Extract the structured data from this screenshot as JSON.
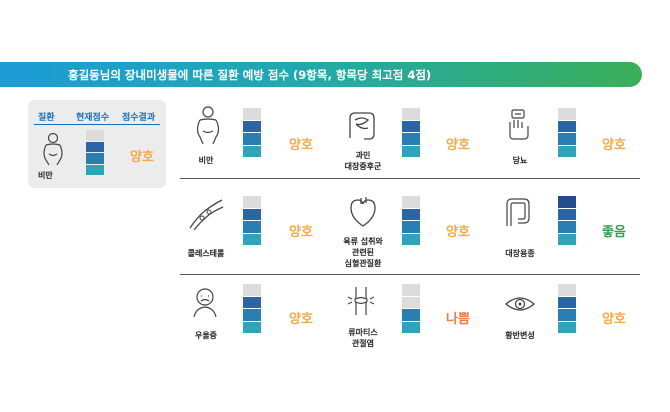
{
  "header": {
    "title": "홍길동님의 장내미생물에 따른 질환 예방 점수 (9항목, 항목당 최고점 4점)"
  },
  "legend": {
    "col_disease": "질환",
    "col_score": "현재점수",
    "col_result": "점수결과",
    "example_label": "비만",
    "example_grade": "양호",
    "example_score": 3
  },
  "diseases": [
    {
      "label_lines": [
        "비만"
      ],
      "grade": "양호",
      "score": 3,
      "icon": "obesity-icon"
    },
    {
      "label_lines": [
        "과민",
        "대장증후군"
      ],
      "grade": "양호",
      "score": 3,
      "icon": "intestine-icon"
    },
    {
      "label_lines": [
        "당뇨"
      ],
      "grade": "양호",
      "score": 3,
      "icon": "glucose-meter-icon"
    },
    {
      "label_lines": [
        "콜레스테롤"
      ],
      "grade": "양호",
      "score": 3,
      "icon": "blood-vessel-icon"
    },
    {
      "label_lines": [
        "육류 섭취와",
        "관련된",
        "심혈관질환"
      ],
      "grade": "양호",
      "score": 3,
      "icon": "heart-icon"
    },
    {
      "label_lines": [
        "대장용종"
      ],
      "grade": "좋음",
      "score": 4,
      "icon": "colon-icon"
    },
    {
      "label_lines": [
        "우울증"
      ],
      "grade": "양호",
      "score": 3,
      "icon": "depressed-face-icon"
    },
    {
      "label_lines": [
        "류마티스",
        "관절염"
      ],
      "grade": "나쁨",
      "score": 2,
      "icon": "joint-icon"
    },
    {
      "label_lines": [
        "황반변성"
      ],
      "grade": "양호",
      "score": 3,
      "icon": "eye-icon"
    }
  ],
  "colors": {
    "bar_empty": "#dcdcdc",
    "bar_levels": [
      "#2fa4b8",
      "#2a7fb2",
      "#2a66a6",
      "#244d8c"
    ]
  }
}
